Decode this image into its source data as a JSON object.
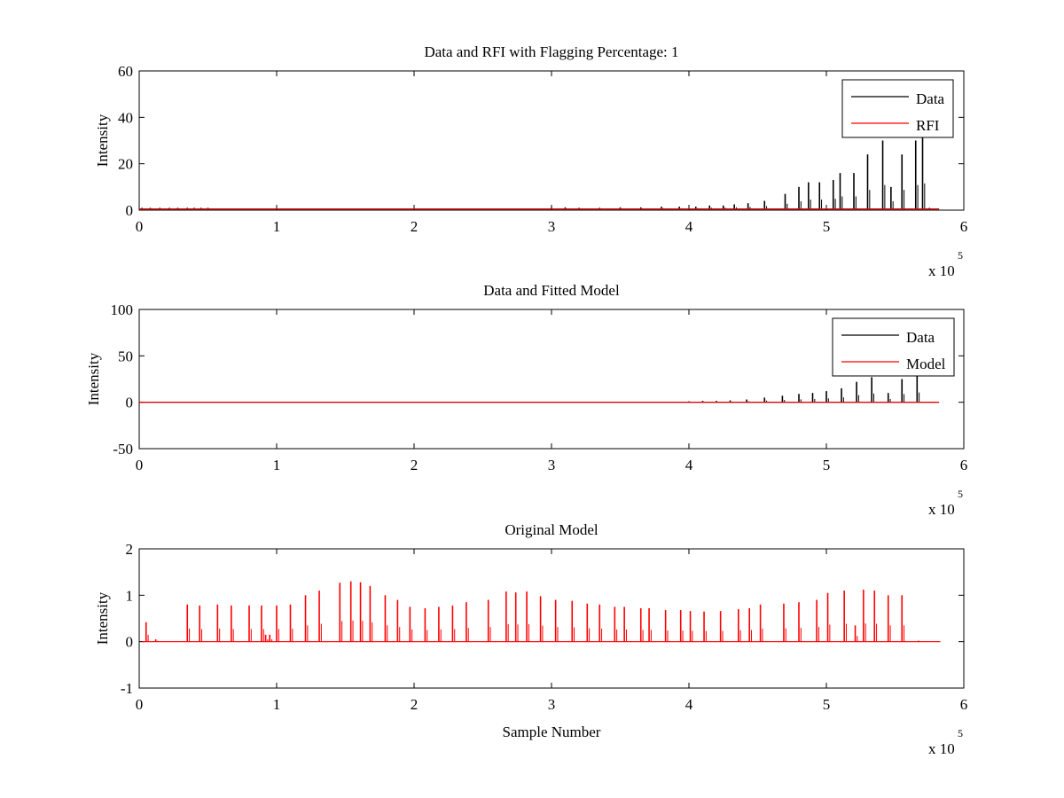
{
  "chart_data": [
    {
      "type": "line",
      "title": "Data and RFI with Flagging Percentage: 1",
      "xlabel": "",
      "ylabel": "Intensity",
      "xlim": [
        0,
        600000
      ],
      "ylim": [
        0,
        60
      ],
      "x_ticks": [
        0,
        1,
        2,
        3,
        4,
        5,
        6
      ],
      "y_ticks": [
        0,
        20,
        40,
        60
      ],
      "x_exponent": "x 10",
      "x_exponent_power": "5",
      "legend": "top-right",
      "series": [
        {
          "name": "Data",
          "color": "#000000",
          "baseline": 0.5,
          "x": [
            2000,
            8000,
            15000,
            22000,
            28000,
            35000,
            40000,
            45000,
            50000,
            300000,
            310000,
            320000,
            335000,
            350000,
            365000,
            380000,
            393000,
            405000,
            415000,
            425000,
            433000,
            443000,
            455000,
            470000,
            480000,
            487000,
            495000,
            505000,
            510000,
            520000,
            530000,
            541000,
            547000,
            555000,
            565000,
            570000,
            575000
          ],
          "y": [
            1,
            1,
            1,
            1,
            1,
            1,
            1,
            1,
            1,
            1,
            1.2,
            1,
            1,
            1.2,
            1.2,
            1.5,
            1.5,
            1.5,
            2,
            2,
            2.5,
            3,
            4,
            7,
            10,
            12,
            12,
            13,
            16,
            16,
            24,
            30,
            10,
            24,
            30,
            32,
            1
          ]
        },
        {
          "name": "RFI",
          "color": "#ff0000",
          "baseline": 0.5,
          "x": [],
          "y": []
        }
      ]
    },
    {
      "type": "line",
      "title": "Data and Fitted Model",
      "xlabel": "",
      "ylabel": "Intensity",
      "xlim": [
        0,
        600000
      ],
      "ylim": [
        -50,
        100
      ],
      "x_ticks": [
        0,
        1,
        2,
        3,
        4,
        5,
        6
      ],
      "y_ticks": [
        -50,
        0,
        50,
        100
      ],
      "x_exponent": "x 10",
      "x_exponent_power": "5",
      "legend": "top-right",
      "series": [
        {
          "name": "Data",
          "color": "#000000",
          "baseline": 0,
          "x": [
            400000,
            410000,
            420000,
            430000,
            442000,
            455000,
            468000,
            480000,
            490000,
            500000,
            511000,
            522000,
            533000,
            545000,
            555000,
            566000
          ],
          "y": [
            1,
            1.5,
            1.5,
            2,
            3,
            5,
            7,
            9,
            10,
            12,
            15,
            22,
            27,
            10,
            25,
            30
          ]
        },
        {
          "name": "Model",
          "color": "#ff0000",
          "baseline": 0,
          "x": [],
          "y": []
        }
      ]
    },
    {
      "type": "line",
      "title": "Original Model",
      "xlabel": "Sample Number",
      "ylabel": "Intensity",
      "xlim": [
        0,
        600000
      ],
      "ylim": [
        -1,
        2
      ],
      "x_ticks": [
        0,
        1,
        2,
        3,
        4,
        5,
        6
      ],
      "y_ticks": [
        -1,
        0,
        1,
        2
      ],
      "x_exponent": "x 10",
      "x_exponent_power": "5",
      "legend": "none",
      "series": [
        {
          "name": "",
          "color": "#ff0000",
          "baseline": 0,
          "x": [
            5000,
            12000,
            35000,
            44000,
            57000,
            67000,
            80000,
            89000,
            92000,
            95000,
            100000,
            110000,
            121000,
            131000,
            146000,
            154000,
            161000,
            168000,
            179000,
            188000,
            197000,
            208000,
            218000,
            228000,
            238000,
            254000,
            267000,
            274000,
            282000,
            292000,
            303000,
            315000,
            326000,
            335000,
            346000,
            353000,
            365000,
            371000,
            383000,
            394000,
            401000,
            411000,
            423000,
            436000,
            444000,
            452000,
            469000,
            480000,
            493000,
            501000,
            513000,
            521000,
            527000,
            535000,
            545000,
            555000,
            567000
          ],
          "y": [
            0.42,
            0.05,
            0.8,
            0.78,
            0.8,
            0.78,
            0.78,
            0.78,
            0.15,
            0.15,
            0.78,
            0.8,
            1.0,
            1.1,
            1.27,
            1.3,
            1.28,
            1.2,
            1.0,
            0.9,
            0.75,
            0.72,
            0.75,
            0.78,
            0.85,
            0.9,
            1.08,
            1.06,
            1.08,
            0.98,
            0.9,
            0.88,
            0.82,
            0.8,
            0.75,
            0.75,
            0.72,
            0.72,
            0.68,
            0.68,
            0.66,
            0.65,
            0.66,
            0.7,
            0.72,
            0.8,
            0.82,
            0.85,
            0.9,
            1.05,
            1.1,
            0.35,
            1.12,
            1.1,
            1.0,
            1.0,
            0.02
          ]
        }
      ]
    }
  ]
}
